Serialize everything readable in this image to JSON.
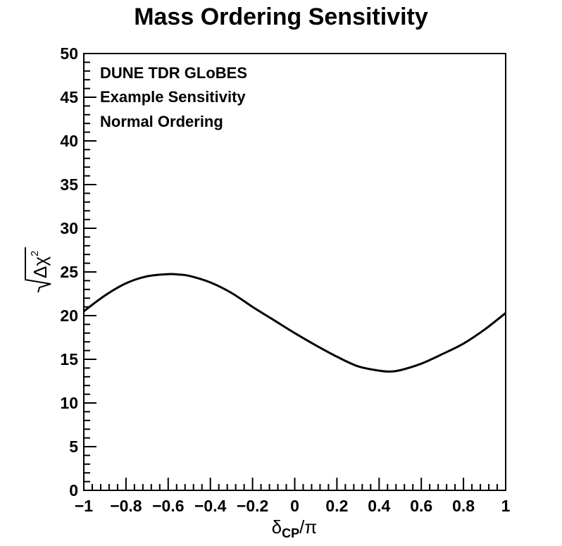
{
  "chart_data": {
    "type": "line",
    "title": "Mass Ordering Sensitivity",
    "xlabel": "δ_CP/π",
    "xlabel_main": "δ",
    "xlabel_sub": "CP",
    "xlabel_tail": "/π",
    "ylabel": "√(Δχ²)",
    "ylabel_main": "Δχ",
    "ylabel_sup": "2",
    "xlim": [
      -1,
      1
    ],
    "ylim": [
      0,
      50
    ],
    "grid": false,
    "x_ticks": [
      -1,
      -0.8,
      -0.6,
      -0.4,
      -0.2,
      0,
      0.2,
      0.4,
      0.6,
      0.8,
      1
    ],
    "x_tick_labels": [
      "−1",
      "−0.8",
      "−0.6",
      "−0.4",
      "−0.2",
      "0",
      "0.2",
      "0.4",
      "0.6",
      "0.8",
      "1"
    ],
    "y_ticks": [
      0,
      5,
      10,
      15,
      20,
      25,
      30,
      35,
      40,
      45,
      50
    ],
    "y_tick_labels": [
      "0",
      "5",
      "10",
      "15",
      "20",
      "25",
      "30",
      "35",
      "40",
      "45",
      "50"
    ],
    "annotations": [
      "DUNE TDR GLoBES",
      "Example Sensitivity",
      "Normal Ordering"
    ],
    "line_color": "#000000",
    "series": [
      {
        "x": [
          -1.0,
          -0.9,
          -0.8,
          -0.7,
          -0.6,
          -0.55,
          -0.5,
          -0.4,
          -0.3,
          -0.2,
          -0.1,
          0.0,
          0.1,
          0.2,
          0.3,
          0.4,
          0.45,
          0.5,
          0.6,
          0.7,
          0.8,
          0.9,
          1.0
        ],
        "values": [
          20.5,
          22.3,
          23.7,
          24.5,
          24.75,
          24.7,
          24.55,
          23.8,
          22.6,
          21.0,
          19.5,
          18.0,
          16.6,
          15.3,
          14.2,
          13.7,
          13.6,
          13.75,
          14.5,
          15.6,
          16.8,
          18.4,
          20.3
        ]
      }
    ]
  }
}
